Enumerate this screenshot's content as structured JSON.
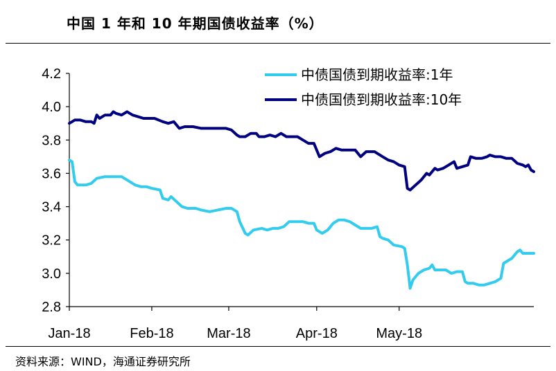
{
  "header": {
    "title": "中国 1 年和 10 年期国债收益率（%）"
  },
  "footer": {
    "source": "资料来源：WIND，海通证券研究所"
  },
  "colors": {
    "series_1y": "#33ccee",
    "series_10y": "#000080",
    "axis": "#000000"
  },
  "chart_data": {
    "type": "line",
    "title": "中国 1 年和 10 年期国债收益率（%）",
    "xlabel": "",
    "ylabel": "",
    "ylim": [
      2.8,
      4.2
    ],
    "yticks": [
      "2.8",
      "3.0",
      "3.2",
      "3.4",
      "3.6",
      "3.8",
      "4.0",
      "4.2"
    ],
    "xticks": [
      {
        "label": "Jan-18",
        "x": "2018-01-02"
      },
      {
        "label": "Feb-18",
        "x": "2018-02-01"
      },
      {
        "label": "Mar-18",
        "x": "2018-03-01"
      },
      {
        "label": "Apr-18",
        "x": "2018-04-02"
      },
      {
        "label": "May-18",
        "x": "2018-05-02"
      }
    ],
    "grid": false,
    "legend": "top-right",
    "series": [
      {
        "name": "中债国债到期收益率:1年",
        "points": [
          [
            "2018-01-02",
            3.68
          ],
          [
            "2018-01-03",
            3.67
          ],
          [
            "2018-01-04",
            3.55
          ],
          [
            "2018-01-05",
            3.53
          ],
          [
            "2018-01-08",
            3.53
          ],
          [
            "2018-01-10",
            3.54
          ],
          [
            "2018-01-12",
            3.57
          ],
          [
            "2018-01-15",
            3.58
          ],
          [
            "2018-01-18",
            3.58
          ],
          [
            "2018-01-21",
            3.58
          ],
          [
            "2018-01-23",
            3.56
          ],
          [
            "2018-01-25",
            3.54
          ],
          [
            "2018-01-26",
            3.53
          ],
          [
            "2018-01-28",
            3.52
          ],
          [
            "2018-01-30",
            3.52
          ],
          [
            "2018-02-01",
            3.51
          ],
          [
            "2018-02-04",
            3.5
          ],
          [
            "2018-02-05",
            3.45
          ],
          [
            "2018-02-07",
            3.44
          ],
          [
            "2018-02-08",
            3.46
          ],
          [
            "2018-02-10",
            3.43
          ],
          [
            "2018-02-12",
            3.4
          ],
          [
            "2018-02-14",
            3.39
          ],
          [
            "2018-02-17",
            3.39
          ],
          [
            "2018-02-19",
            3.38
          ],
          [
            "2018-02-22",
            3.37
          ],
          [
            "2018-02-25",
            3.38
          ],
          [
            "2018-02-28",
            3.39
          ],
          [
            "2018-03-02",
            3.39
          ],
          [
            "2018-03-04",
            3.37
          ],
          [
            "2018-03-05",
            3.31
          ],
          [
            "2018-03-07",
            3.24
          ],
          [
            "2018-03-08",
            3.23
          ],
          [
            "2018-03-10",
            3.26
          ],
          [
            "2018-03-13",
            3.27
          ],
          [
            "2018-03-15",
            3.26
          ],
          [
            "2018-03-17",
            3.27
          ],
          [
            "2018-03-19",
            3.27
          ],
          [
            "2018-03-21",
            3.28
          ],
          [
            "2018-03-23",
            3.31
          ],
          [
            "2018-03-26",
            3.31
          ],
          [
            "2018-03-28",
            3.31
          ],
          [
            "2018-03-30",
            3.3
          ],
          [
            "2018-04-01",
            3.3
          ],
          [
            "2018-04-02",
            3.26
          ],
          [
            "2018-04-04",
            3.24
          ],
          [
            "2018-04-06",
            3.26
          ],
          [
            "2018-04-08",
            3.3
          ],
          [
            "2018-04-10",
            3.32
          ],
          [
            "2018-04-12",
            3.32
          ],
          [
            "2018-04-14",
            3.31
          ],
          [
            "2018-04-16",
            3.29
          ],
          [
            "2018-04-18",
            3.27
          ],
          [
            "2018-04-20",
            3.27
          ],
          [
            "2018-04-22",
            3.27
          ],
          [
            "2018-04-24",
            3.28
          ],
          [
            "2018-04-25",
            3.22
          ],
          [
            "2018-04-26",
            3.21
          ],
          [
            "2018-04-28",
            3.2
          ],
          [
            "2018-04-30",
            3.17
          ],
          [
            "2018-05-03",
            3.16
          ],
          [
            "2018-05-04",
            3.15
          ],
          [
            "2018-05-05",
            3.05
          ],
          [
            "2018-05-06",
            2.91
          ],
          [
            "2018-05-07",
            2.96
          ],
          [
            "2018-05-09",
            3.0
          ],
          [
            "2018-05-11",
            3.02
          ],
          [
            "2018-05-13",
            3.03
          ],
          [
            "2018-05-14",
            3.05
          ],
          [
            "2018-05-15",
            3.02
          ],
          [
            "2018-05-17",
            3.02
          ],
          [
            "2018-05-19",
            3.02
          ],
          [
            "2018-05-21",
            3.0
          ],
          [
            "2018-05-23",
            3.01
          ],
          [
            "2018-05-25",
            3.01
          ],
          [
            "2018-05-26",
            2.95
          ],
          [
            "2018-05-27",
            2.94
          ],
          [
            "2018-05-29",
            2.94
          ],
          [
            "2018-05-31",
            2.93
          ],
          [
            "2018-06-02",
            2.93
          ],
          [
            "2018-06-04",
            2.94
          ],
          [
            "2018-06-06",
            2.95
          ],
          [
            "2018-06-08",
            2.97
          ],
          [
            "2018-06-09",
            3.06
          ],
          [
            "2018-06-10",
            3.07
          ],
          [
            "2018-06-12",
            3.09
          ],
          [
            "2018-06-14",
            3.13
          ],
          [
            "2018-06-15",
            3.14
          ],
          [
            "2018-06-16",
            3.12
          ],
          [
            "2018-06-18",
            3.12
          ],
          [
            "2018-06-20",
            3.12
          ]
        ]
      },
      {
        "name": "中债国债到期收益率:10年",
        "points": [
          [
            "2018-01-02",
            3.9
          ],
          [
            "2018-01-04",
            3.92
          ],
          [
            "2018-01-06",
            3.92
          ],
          [
            "2018-01-08",
            3.91
          ],
          [
            "2018-01-10",
            3.91
          ],
          [
            "2018-01-11",
            3.9
          ],
          [
            "2018-01-12",
            3.95
          ],
          [
            "2018-01-13",
            3.93
          ],
          [
            "2018-01-15",
            3.95
          ],
          [
            "2018-01-17",
            3.95
          ],
          [
            "2018-01-18",
            3.97
          ],
          [
            "2018-01-19",
            3.96
          ],
          [
            "2018-01-21",
            3.95
          ],
          [
            "2018-01-23",
            3.97
          ],
          [
            "2018-01-25",
            3.95
          ],
          [
            "2018-01-27",
            3.94
          ],
          [
            "2018-01-29",
            3.93
          ],
          [
            "2018-01-31",
            3.93
          ],
          [
            "2018-02-02",
            3.93
          ],
          [
            "2018-02-05",
            3.91
          ],
          [
            "2018-02-07",
            3.9
          ],
          [
            "2018-02-09",
            3.91
          ],
          [
            "2018-02-11",
            3.87
          ],
          [
            "2018-02-13",
            3.88
          ],
          [
            "2018-02-16",
            3.88
          ],
          [
            "2018-02-19",
            3.87
          ],
          [
            "2018-02-22",
            3.87
          ],
          [
            "2018-02-25",
            3.87
          ],
          [
            "2018-02-28",
            3.87
          ],
          [
            "2018-03-02",
            3.86
          ],
          [
            "2018-03-04",
            3.83
          ],
          [
            "2018-03-05",
            3.82
          ],
          [
            "2018-03-07",
            3.82
          ],
          [
            "2018-03-09",
            3.84
          ],
          [
            "2018-03-11",
            3.84
          ],
          [
            "2018-03-12",
            3.82
          ],
          [
            "2018-03-14",
            3.82
          ],
          [
            "2018-03-16",
            3.83
          ],
          [
            "2018-03-18",
            3.82
          ],
          [
            "2018-03-20",
            3.84
          ],
          [
            "2018-03-22",
            3.82
          ],
          [
            "2018-03-24",
            3.82
          ],
          [
            "2018-03-26",
            3.82
          ],
          [
            "2018-03-28",
            3.8
          ],
          [
            "2018-03-30",
            3.78
          ],
          [
            "2018-04-01",
            3.78
          ],
          [
            "2018-04-03",
            3.7
          ],
          [
            "2018-04-05",
            3.72
          ],
          [
            "2018-04-07",
            3.73
          ],
          [
            "2018-04-09",
            3.75
          ],
          [
            "2018-04-11",
            3.74
          ],
          [
            "2018-04-13",
            3.74
          ],
          [
            "2018-04-16",
            3.74
          ],
          [
            "2018-04-18",
            3.7
          ],
          [
            "2018-04-20",
            3.73
          ],
          [
            "2018-04-23",
            3.73
          ],
          [
            "2018-04-26",
            3.7
          ],
          [
            "2018-04-28",
            3.68
          ],
          [
            "2018-04-30",
            3.67
          ],
          [
            "2018-05-02",
            3.65
          ],
          [
            "2018-05-04",
            3.64
          ],
          [
            "2018-05-05",
            3.51
          ],
          [
            "2018-05-06",
            3.5
          ],
          [
            "2018-05-08",
            3.53
          ],
          [
            "2018-05-10",
            3.56
          ],
          [
            "2018-05-12",
            3.6
          ],
          [
            "2018-05-13",
            3.59
          ],
          [
            "2018-05-15",
            3.63
          ],
          [
            "2018-05-16",
            3.62
          ],
          [
            "2018-05-18",
            3.63
          ],
          [
            "2018-05-20",
            3.65
          ],
          [
            "2018-05-22",
            3.67
          ],
          [
            "2018-05-23",
            3.63
          ],
          [
            "2018-05-25",
            3.64
          ],
          [
            "2018-05-27",
            3.65
          ],
          [
            "2018-05-28",
            3.7
          ],
          [
            "2018-05-30",
            3.69
          ],
          [
            "2018-06-01",
            3.69
          ],
          [
            "2018-06-03",
            3.7
          ],
          [
            "2018-06-04",
            3.71
          ],
          [
            "2018-06-06",
            3.7
          ],
          [
            "2018-06-08",
            3.7
          ],
          [
            "2018-06-10",
            3.69
          ],
          [
            "2018-06-12",
            3.69
          ],
          [
            "2018-06-14",
            3.66
          ],
          [
            "2018-06-16",
            3.65
          ],
          [
            "2018-06-17",
            3.64
          ],
          [
            "2018-06-18",
            3.65
          ],
          [
            "2018-06-19",
            3.62
          ],
          [
            "2018-06-20",
            3.61
          ]
        ]
      }
    ]
  }
}
